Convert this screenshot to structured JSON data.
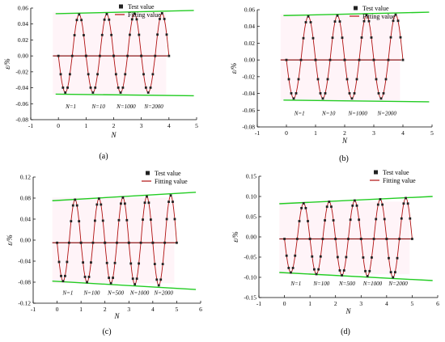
{
  "legend": {
    "test": "Test value",
    "fit": "Fitting value"
  },
  "colors": {
    "test": "#222222",
    "fit": "#b01010",
    "envelope": "#22cc22",
    "zero": "#8b1a1a",
    "shade": "#ffc0d8"
  },
  "chart_data": [
    {
      "panel_label": "(a)",
      "type": "scatter",
      "xlabel": "N",
      "ylabel": "ε/%",
      "xlim": [
        -1,
        5
      ],
      "ylim": [
        -0.08,
        0.06
      ],
      "xticks": [
        "-1",
        "0",
        "1",
        "2",
        "3",
        "4",
        "5"
      ],
      "yticks": [
        "0.06",
        "0.04",
        "0.02",
        "0.00",
        "-0.02",
        "-0.04",
        "-0.06",
        "-0.08"
      ],
      "yticks_values": [
        0.06,
        0.04,
        0.02,
        0.0,
        -0.02,
        -0.04,
        -0.06,
        -0.08
      ],
      "series_cycles": 4,
      "amplitude_upper": [
        0.052,
        0.0525,
        0.053,
        0.0535
      ],
      "amplitude_lower": [
        -0.046,
        -0.046,
        -0.046,
        -0.046
      ],
      "upper_envelope": [
        [
          -0.1,
          0.053
        ],
        [
          4.9,
          0.057
        ]
      ],
      "lower_envelope": [
        [
          -0.1,
          -0.048
        ],
        [
          4.9,
          -0.05
        ]
      ],
      "baseline": 0.0,
      "cycle_labels": [
        "N=1",
        "N=10",
        "N=1000",
        "N=2000"
      ],
      "cycle_label_y": -0.066
    },
    {
      "panel_label": "(b)",
      "type": "scatter",
      "xlabel": "N",
      "ylabel": "ε/%",
      "xlim": [
        -1,
        5
      ],
      "ylim": [
        -0.08,
        0.06
      ],
      "xticks": [
        "-1",
        "0",
        "1",
        "2",
        "3",
        "4",
        "5"
      ],
      "yticks": [
        "0.06",
        "0.04",
        "0.02",
        "0.00",
        "-0.02",
        "-0.04",
        "-0.06",
        "-0.08"
      ],
      "yticks_values": [
        0.06,
        0.04,
        0.02,
        0.0,
        -0.02,
        -0.04,
        -0.06,
        -0.08
      ],
      "series_cycles": 4,
      "amplitude_upper": [
        0.052,
        0.053,
        0.0535,
        0.054
      ],
      "amplitude_lower": [
        -0.046,
        -0.046,
        -0.046,
        -0.046
      ],
      "upper_envelope": [
        [
          -0.1,
          0.053
        ],
        [
          4.9,
          0.057
        ]
      ],
      "lower_envelope": [
        [
          -0.1,
          -0.048
        ],
        [
          4.9,
          -0.05
        ]
      ],
      "baseline": 0.0,
      "cycle_labels": [
        "N=1",
        "N=10",
        "N=1000",
        "N=2000"
      ],
      "cycle_label_y": -0.066
    },
    {
      "panel_label": "(c)",
      "type": "scatter",
      "xlabel": "N",
      "ylabel": "ε/%",
      "xlim": [
        -1,
        6
      ],
      "ylim": [
        -0.12,
        0.12
      ],
      "xticks": [
        "-1",
        "0",
        "1",
        "2",
        "3",
        "4",
        "5",
        "6"
      ],
      "yticks": [
        "0.12",
        "0.08",
        "0.04",
        "0.00",
        "-0.04",
        "-0.08",
        "-0.12"
      ],
      "yticks_values": [
        0.12,
        0.08,
        0.04,
        0.0,
        -0.04,
        -0.08,
        -0.12
      ],
      "series_cycles": 5,
      "amplitude_upper": [
        0.077,
        0.079,
        0.081,
        0.083,
        0.085
      ],
      "amplitude_lower": [
        -0.078,
        -0.08,
        -0.082,
        -0.084,
        -0.086
      ],
      "upper_envelope": [
        [
          -0.2,
          0.075
        ],
        [
          5.8,
          0.091
        ]
      ],
      "lower_envelope": [
        [
          -0.2,
          -0.078
        ],
        [
          5.8,
          -0.094
        ]
      ],
      "baseline": -0.005,
      "cycle_labels": [
        "N=1",
        "N=100",
        "N=500",
        "N=1000",
        "N=2000"
      ],
      "cycle_label_y": -0.104
    },
    {
      "panel_label": "(d)",
      "type": "scatter",
      "xlabel": "N",
      "ylabel": "ε/%",
      "xlim": [
        -1,
        6
      ],
      "ylim": [
        -0.15,
        0.15
      ],
      "xticks": [
        "-1",
        "0",
        "1",
        "2",
        "3",
        "4",
        "5",
        "6"
      ],
      "yticks": [
        "0.15",
        "0.10",
        "0.05",
        "0.00",
        "-0.05",
        "-0.10",
        "-0.15"
      ],
      "yticks_values": [
        0.15,
        0.1,
        0.05,
        0.0,
        -0.05,
        -0.1,
        -0.15
      ],
      "series_cycles": 5,
      "amplitude_upper": [
        0.083,
        0.087,
        0.09,
        0.093,
        0.096
      ],
      "amplitude_lower": [
        -0.088,
        -0.092,
        -0.095,
        -0.097,
        -0.1
      ],
      "upper_envelope": [
        [
          -0.2,
          0.082
        ],
        [
          5.8,
          0.1
        ]
      ],
      "lower_envelope": [
        [
          -0.2,
          -0.088
        ],
        [
          5.8,
          -0.108
        ]
      ],
      "baseline": -0.005,
      "cycle_labels": [
        "N=1",
        "N=100",
        "N=500",
        "N=1000",
        "N=2000"
      ],
      "cycle_label_y": -0.12
    }
  ]
}
